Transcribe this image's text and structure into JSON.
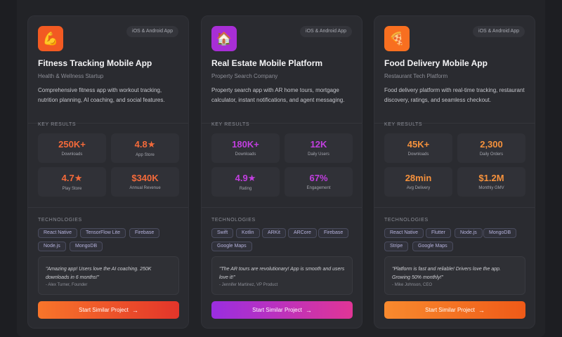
{
  "cards": [
    {
      "icon": "flexed-biceps-icon",
      "icon_glyph": "💪",
      "platform": "iOS & Android App",
      "title": "Fitness Tracking Mobile App",
      "subtitle": "Health & Wellness Startup",
      "description": "Comprehensive fitness app with workout tracking, nutrition planning, AI coaching, and social features.",
      "key_results_label": "KEY RESULTS",
      "stats": [
        {
          "value": "250K+",
          "label": "Downloads"
        },
        {
          "value": "4.8★",
          "label": "App Store"
        },
        {
          "value": "4.7★",
          "label": "Play Store"
        },
        {
          "value": "$340K",
          "label": "Annual Revenue"
        }
      ],
      "technologies_label": "TECHNOLOGIES",
      "technologies": [
        "React Native",
        "TensorFlow Lite",
        "Firebase",
        "Node.js",
        "MongoDB"
      ],
      "quote": "\"Amazing app! Users love the AI coaching. 250K downloads in 6 months!\"",
      "author": "- Alex Turner, Founder",
      "cta_label": "Start Similar Project"
    },
    {
      "icon": "house-icon",
      "icon_glyph": "🏠",
      "platform": "iOS & Android App",
      "title": "Real Estate Mobile Platform",
      "subtitle": "Property Search Company",
      "description": "Property search app with AR home tours, mortgage calculator, instant notifications, and agent messaging.",
      "key_results_label": "KEY RESULTS",
      "stats": [
        {
          "value": "180K+",
          "label": "Downloads"
        },
        {
          "value": "12K",
          "label": "Daily Users"
        },
        {
          "value": "4.9★",
          "label": "Rating"
        },
        {
          "value": "67%",
          "label": "Engagement"
        }
      ],
      "technologies_label": "TECHNOLOGIES",
      "technologies": [
        "Swift",
        "Kotlin",
        "ARKit",
        "ARCore",
        "Firebase",
        "Google Maps"
      ],
      "quote": "\"The AR tours are revolutionary! App is smooth and users love it!\"",
      "author": "- Jennifer Martinez, VP Product",
      "cta_label": "Start Similar Project"
    },
    {
      "icon": "pizza-icon",
      "icon_glyph": "🍕",
      "platform": "iOS & Android App",
      "title": "Food Delivery Mobile App",
      "subtitle": "Restaurant Tech Platform",
      "description": "Food delivery platform with real-time tracking, restaurant discovery, ratings, and seamless checkout.",
      "key_results_label": "KEY RESULTS",
      "stats": [
        {
          "value": "45K+",
          "label": "Downloads"
        },
        {
          "value": "2,300",
          "label": "Daily Orders"
        },
        {
          "value": "28min",
          "label": "Avg Delivery"
        },
        {
          "value": "$1.2M",
          "label": "Monthly GMV"
        }
      ],
      "technologies_label": "TECHNOLOGIES",
      "technologies": [
        "React Native",
        "Flutter",
        "Node.js",
        "MongoDB",
        "Stripe",
        "Google Maps"
      ],
      "quote": "\"Platform is fast and reliable! Drivers love the app. Growing 50% monthly!\"",
      "author": "- Mike Johnson, CEO",
      "cta_label": "Start Similar Project"
    }
  ],
  "theme": {
    "card_accents": [
      "#f4672f",
      "#c136d8",
      "#f57a2a"
    ],
    "card_stat_colors": [
      "#f46a3a",
      "#c23fe0",
      "#f7923c"
    ],
    "card_icon_bg": [
      "#f25a22",
      "#a82ed6",
      "#f86f20"
    ],
    "card_cta_gradients": [
      [
        "#f8752a",
        "#e3352a"
      ],
      [
        "#9a2ee0",
        "#e03596"
      ],
      [
        "#f88a2e",
        "#ef5a18"
      ]
    ]
  }
}
